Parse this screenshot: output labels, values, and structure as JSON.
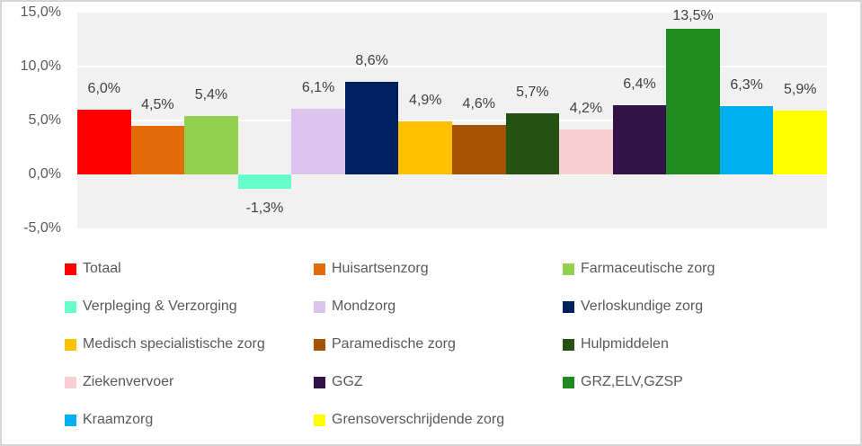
{
  "chart_data": {
    "type": "bar",
    "title": "",
    "xlabel": "",
    "ylabel": "",
    "categories": [
      "Totaal",
      "Huisartsenzorg",
      "Farmaceutische zorg",
      "Verpleging & Verzorging",
      "Mondzorg",
      "Verloskundige zorg",
      "Medisch specialistische zorg",
      "Paramedische zorg",
      "Hulpmiddelen",
      "Ziekenvervoer",
      "GGZ",
      "GRZ,ELV,GZSP",
      "Kraamzorg",
      "Grensoverschrijdende zorg"
    ],
    "values": [
      6.0,
      4.5,
      5.4,
      -1.3,
      6.1,
      8.6,
      4.9,
      4.6,
      5.7,
      4.2,
      6.4,
      13.5,
      6.3,
      5.9
    ],
    "data_labels": [
      "6,0%",
      "4,5%",
      "5,4%",
      "-1,3%",
      "6,1%",
      "8,6%",
      "4,9%",
      "4,6%",
      "5,7%",
      "4,2%",
      "6,4%",
      "13,5%",
      "6,3%",
      "5,9%"
    ],
    "colors": [
      "#FF0000",
      "#E36C09",
      "#92D050",
      "#66FFCC",
      "#DCC3ED",
      "#002060",
      "#FFC000",
      "#A55300",
      "#255212",
      "#F7CFD0",
      "#321247",
      "#1F8A1F",
      "#00B0F0",
      "#FFFF00"
    ],
    "ylim": [
      -5,
      15
    ],
    "ytick_labels": [
      "15,0%",
      "10,0%",
      "5,0%",
      "0,0%",
      "-5,0%"
    ],
    "grid": true,
    "gap_width_percent": 0,
    "legend_position": "bottom",
    "plot_bg": "#f1f1f1",
    "gridline_color": "#ffffff",
    "axis_text_color": "#595959",
    "label_text_color": "#404040"
  }
}
